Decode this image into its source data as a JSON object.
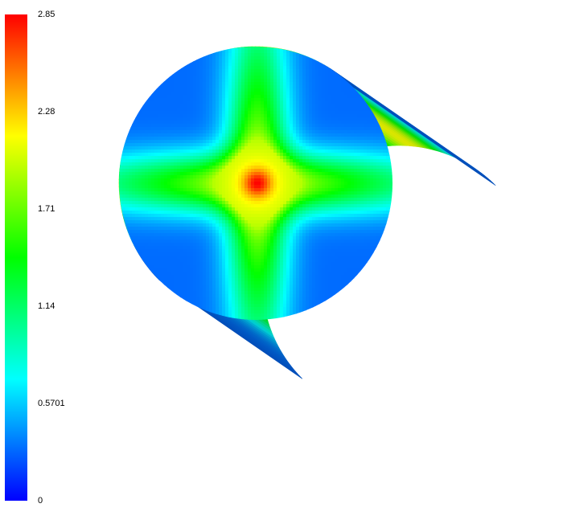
{
  "chart_data": {
    "type": "heatmap",
    "colorbar": {
      "min": 0,
      "max": 2.85,
      "ticks": [
        {
          "value": 2.85,
          "label": "2.85"
        },
        {
          "value": 2.28,
          "label": "2.28"
        },
        {
          "value": 1.71,
          "label": "1.71"
        },
        {
          "value": 1.14,
          "label": "1.14"
        },
        {
          "value": 0.5701,
          "label": "0.5701"
        },
        {
          "value": 0,
          "label": "0"
        }
      ],
      "colormap": [
        "#0000ff",
        "#00ffff",
        "#00ff00",
        "#ffff00",
        "#ff0000"
      ]
    },
    "field": {
      "end_face_center_value": 2.85,
      "end_face_cross_value": 2.28,
      "end_face_edge_value": 0.3,
      "side_band_value": 2.1,
      "side_min_value": 0.3
    }
  }
}
